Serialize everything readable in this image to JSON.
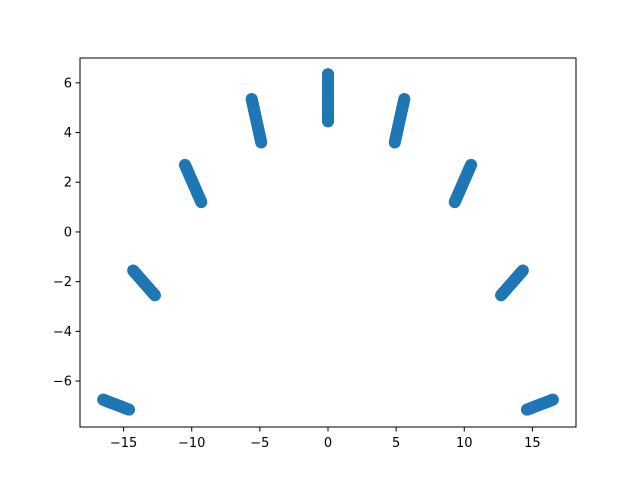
{
  "chart_data": {
    "type": "scatter",
    "title": "",
    "xlabel": "",
    "ylabel": "",
    "xlim": [
      -18.2,
      18.2
    ],
    "ylim": [
      -7.85,
      7.0
    ],
    "xticks": [
      -15,
      -10,
      -5,
      0,
      5,
      10,
      15
    ],
    "yticks": [
      -6,
      -4,
      -2,
      0,
      2,
      4,
      6
    ],
    "grid": false,
    "legend": "none",
    "marker_color": "#1f77b4",
    "points_per_segment": 40,
    "segments": [
      {
        "x_start": -16.5,
        "y_start": -6.75,
        "x_end": -14.6,
        "y_end": -7.15
      },
      {
        "x_start": -14.3,
        "y_start": -1.55,
        "x_end": -12.7,
        "y_end": -2.55
      },
      {
        "x_start": -10.5,
        "y_start": 2.7,
        "x_end": -9.3,
        "y_end": 1.2
      },
      {
        "x_start": -5.6,
        "y_start": 5.35,
        "x_end": -4.9,
        "y_end": 3.6
      },
      {
        "x_start": 0.0,
        "y_start": 6.35,
        "x_end": 0.0,
        "y_end": 4.45
      },
      {
        "x_start": 5.6,
        "y_start": 5.35,
        "x_end": 4.9,
        "y_end": 3.6
      },
      {
        "x_start": 10.5,
        "y_start": 2.7,
        "x_end": 9.3,
        "y_end": 1.2
      },
      {
        "x_start": 14.3,
        "y_start": -1.55,
        "x_end": 12.7,
        "y_end": -2.55
      },
      {
        "x_start": 16.5,
        "y_start": -6.75,
        "x_end": 14.6,
        "y_end": -7.15
      }
    ]
  }
}
